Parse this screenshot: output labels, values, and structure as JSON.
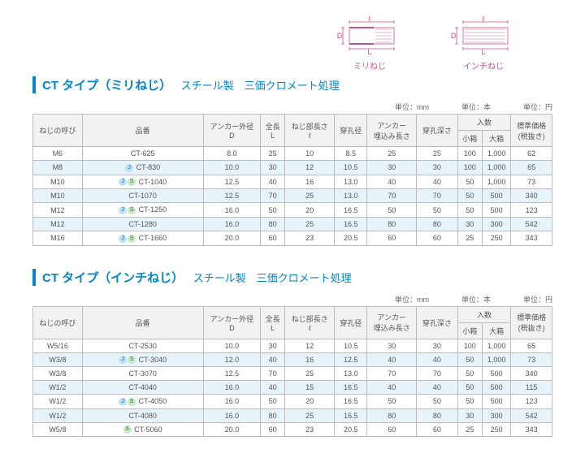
{
  "diagrams": {
    "left_label": "ミリねじ",
    "right_label": "インチねじ",
    "dim_l": "ℓ",
    "dim_L": "L",
    "dim_D": "D",
    "color": "#c8508a"
  },
  "units": {
    "mm": "単位：mm",
    "hon": "単位：本",
    "yen": "単位：円"
  },
  "headers": {
    "thread": "ねじの呼び",
    "part": "品番",
    "outerD": "アンカー外径",
    "outerD_sub": "D",
    "length": "全長",
    "length_sub": "L",
    "threadLen": "ねじ部長さ",
    "threadLen_sub": "ℓ",
    "drillDia": "穿孔径",
    "embed": "アンカー",
    "embed2": "埋込み長さ",
    "drillDepth": "穿孔深さ",
    "qty": "入数",
    "small": "小箱",
    "large": "大箱",
    "price": "標準価格",
    "price_sub": "(税抜き)"
  },
  "tables": [
    {
      "title_ct": "CT",
      "title_type": "タイプ（ミリねじ）",
      "title_mat": "スチール製　三価クロメート処理",
      "rows": [
        {
          "hl": false,
          "thread": "M6",
          "icons": [],
          "part": "CT-625",
          "D": "8.0",
          "L": "25",
          "l": "10",
          "dia": "8.5",
          "emb": "25",
          "dep": "25",
          "sm": "100",
          "lg": "1,000",
          "price": "62"
        },
        {
          "hl": true,
          "thread": "M8",
          "icons": [
            "J"
          ],
          "part": "CT-830",
          "D": "10.0",
          "L": "30",
          "l": "12",
          "dia": "10.5",
          "emb": "30",
          "dep": "30",
          "sm": "100",
          "lg": "1,000",
          "price": "65"
        },
        {
          "hl": false,
          "thread": "M10",
          "icons": [
            "J",
            "S"
          ],
          "part": "CT-1040",
          "D": "12.5",
          "L": "40",
          "l": "16",
          "dia": "13.0",
          "emb": "40",
          "dep": "40",
          "sm": "50",
          "lg": "1,000",
          "price": "73"
        },
        {
          "hl": true,
          "thread": "M10",
          "icons": [],
          "part": "CT-1070",
          "D": "12.5",
          "L": "70",
          "l": "25",
          "dia": "13.0",
          "emb": "70",
          "dep": "70",
          "sm": "50",
          "lg": "500",
          "price": "340"
        },
        {
          "hl": false,
          "thread": "M12",
          "icons": [
            "J",
            "S"
          ],
          "part": "CT-1250",
          "D": "16.0",
          "L": "50",
          "l": "20",
          "dia": "16.5",
          "emb": "50",
          "dep": "50",
          "sm": "50",
          "lg": "500",
          "price": "123"
        },
        {
          "hl": true,
          "thread": "M12",
          "icons": [],
          "part": "CT-1280",
          "D": "16.0",
          "L": "80",
          "l": "25",
          "dia": "16.5",
          "emb": "80",
          "dep": "80",
          "sm": "30",
          "lg": "300",
          "price": "542"
        },
        {
          "hl": false,
          "thread": "M16",
          "icons": [
            "J",
            "S"
          ],
          "part": "CT-1660",
          "D": "20.0",
          "L": "60",
          "l": "23",
          "dia": "20.5",
          "emb": "60",
          "dep": "60",
          "sm": "25",
          "lg": "250",
          "price": "343"
        }
      ]
    },
    {
      "title_ct": "CT",
      "title_type": "タイプ（インチねじ）",
      "title_mat": "スチール製　三価クロメート処理",
      "rows": [
        {
          "hl": false,
          "thread": "W5/16",
          "icons": [],
          "part": "CT-2530",
          "D": "10.0",
          "L": "30",
          "l": "12",
          "dia": "10.5",
          "emb": "30",
          "dep": "30",
          "sm": "100",
          "lg": "1,000",
          "price": "65"
        },
        {
          "hl": true,
          "thread": "W3/8",
          "icons": [
            "J",
            "S"
          ],
          "part": "CT-3040",
          "D": "12.0",
          "L": "40",
          "l": "16",
          "dia": "12.5",
          "emb": "40",
          "dep": "40",
          "sm": "50",
          "lg": "1,000",
          "price": "73"
        },
        {
          "hl": false,
          "thread": "W3/8",
          "icons": [],
          "part": "CT-3070",
          "D": "12.5",
          "L": "70",
          "l": "25",
          "dia": "13.0",
          "emb": "70",
          "dep": "70",
          "sm": "50",
          "lg": "500",
          "price": "340"
        },
        {
          "hl": true,
          "thread": "W1/2",
          "icons": [],
          "part": "CT-4040",
          "D": "16.0",
          "L": "40",
          "l": "15",
          "dia": "16.5",
          "emb": "40",
          "dep": "40",
          "sm": "50",
          "lg": "500",
          "price": "115"
        },
        {
          "hl": false,
          "thread": "W1/2",
          "icons": [
            "J",
            "S"
          ],
          "part": "CT-4050",
          "D": "16.0",
          "L": "50",
          "l": "20",
          "dia": "16.5",
          "emb": "50",
          "dep": "50",
          "sm": "50",
          "lg": "500",
          "price": "123"
        },
        {
          "hl": true,
          "thread": "W1/2",
          "icons": [],
          "part": "CT-4080",
          "D": "16.0",
          "L": "80",
          "l": "25",
          "dia": "16.5",
          "emb": "80",
          "dep": "80",
          "sm": "30",
          "lg": "300",
          "price": "542"
        },
        {
          "hl": false,
          "thread": "W5/8",
          "icons": [
            "S"
          ],
          "part": "CT-5060",
          "D": "20.0",
          "L": "60",
          "l": "23",
          "dia": "20.5",
          "emb": "60",
          "dep": "60",
          "sm": "25",
          "lg": "250",
          "price": "343"
        }
      ]
    }
  ]
}
